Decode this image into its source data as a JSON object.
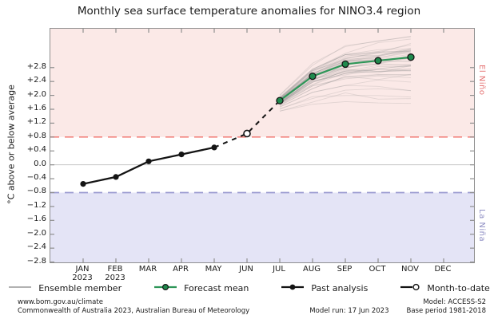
{
  "title": "Monthly sea surface temperature anomalies for NINO3.4 region",
  "y_axis": {
    "label": "°C above or below average",
    "ticks": [
      {
        "label": "+2.8",
        "value": 2.8
      },
      {
        "label": "+2.4",
        "value": 2.4
      },
      {
        "label": "+2.0",
        "value": 2.0
      },
      {
        "label": "+1.6",
        "value": 1.6
      },
      {
        "label": "+1.2",
        "value": 1.2
      },
      {
        "label": "+0.8",
        "value": 0.8
      },
      {
        "label": "+0.4",
        "value": 0.4
      },
      {
        "label": "0.0",
        "value": 0.0
      },
      {
        "label": "−0.4",
        "value": -0.4
      },
      {
        "label": "−0.8",
        "value": -0.8
      },
      {
        "label": "−1.2",
        "value": -1.2
      },
      {
        "label": "−1.6",
        "value": -1.6
      },
      {
        "label": "−2.0",
        "value": -2.0
      },
      {
        "label": "−2.4",
        "value": -2.4
      },
      {
        "label": "−2.8",
        "value": -2.8
      }
    ]
  },
  "x_axis": {
    "months": [
      {
        "label": "JAN",
        "year": "2023"
      },
      {
        "label": "FEB",
        "year": "2023"
      },
      {
        "label": "MAR",
        "year": ""
      },
      {
        "label": "APR",
        "year": ""
      },
      {
        "label": "MAY",
        "year": ""
      },
      {
        "label": "JUN",
        "year": ""
      },
      {
        "label": "JUL",
        "year": ""
      },
      {
        "label": "AUG",
        "year": ""
      },
      {
        "label": "SEP",
        "year": ""
      },
      {
        "label": "OCT",
        "year": ""
      },
      {
        "label": "NOV",
        "year": ""
      },
      {
        "label": "DEC",
        "year": ""
      }
    ]
  },
  "regions": {
    "el_nino": {
      "label": "El Niño",
      "threshold": 0.8
    },
    "la_nina": {
      "label": "La Niña",
      "threshold": -0.8
    }
  },
  "colors": {
    "el_nino_band": "#fbe9e7",
    "el_nino_line": "#f2837e",
    "la_nina_band": "#e4e4f6",
    "la_nina_line": "#9a9ad0",
    "zero_line": "#c4c4c4",
    "frame": "#8f8f8f",
    "ensemble": "#8a8a8a",
    "forecast_line": "#2e9658",
    "forecast_dot": "#1f8a4d",
    "past": "#141414"
  },
  "chart_data": {
    "type": "line",
    "title": "Monthly sea surface temperature anomalies for NINO3.4 region",
    "ylabel": "°C above or below average",
    "categories": [
      "JAN 2023",
      "FEB 2023",
      "MAR",
      "APR",
      "MAY",
      "JUN",
      "JUL",
      "AUG",
      "SEP",
      "OCT",
      "NOV",
      "DEC"
    ],
    "ylim": [
      -2.81,
      3.92
    ],
    "grid": false,
    "thresholds": {
      "el_nino": 0.8,
      "la_nina": -0.8
    },
    "series": [
      {
        "name": "Past analysis",
        "style": "solid-black-dots",
        "start_index": 0,
        "months": [
          "JAN",
          "FEB",
          "MAR",
          "APR",
          "MAY"
        ],
        "values": [
          -0.55,
          -0.35,
          0.1,
          0.3,
          0.5
        ]
      },
      {
        "name": "Month-to-date",
        "style": "open-circle-dashed-connector",
        "start_index": 5,
        "months": [
          "JUN"
        ],
        "values": [
          0.9
        ]
      },
      {
        "name": "Forecast mean",
        "style": "solid-green-dots",
        "start_index": 6,
        "months": [
          "JUL",
          "AUG",
          "SEP",
          "OCT",
          "NOV"
        ],
        "values": [
          1.85,
          2.55,
          2.9,
          3.0,
          3.1
        ]
      },
      {
        "name": "Ensemble member",
        "style": "thin-gray",
        "type": "ensemble",
        "start_index": 6,
        "count": 45,
        "seed": 11,
        "months": [
          "JUL",
          "AUG",
          "SEP",
          "OCT",
          "NOV"
        ],
        "mean": [
          1.85,
          2.55,
          2.9,
          3.0,
          3.1
        ],
        "spread": [
          0.18,
          0.42,
          0.58,
          0.68,
          0.78
        ]
      }
    ]
  },
  "legend": [
    {
      "label": "Ensemble member",
      "marker": "ensemble"
    },
    {
      "label": "Forecast mean",
      "marker": "forecast"
    },
    {
      "label": "Past analysis",
      "marker": "past"
    },
    {
      "label": "Month-to-date",
      "marker": "mtd"
    }
  ],
  "footer": {
    "left_line1": "www.bom.gov.au/climate",
    "left_line2": "Commonwealth of Australia 2023, Australian Bureau of Meteorology",
    "model_run": "Model run: 17 Jun 2023",
    "model": "Model: ACCESS-S2",
    "base_period": "Base period 1981-2018"
  }
}
